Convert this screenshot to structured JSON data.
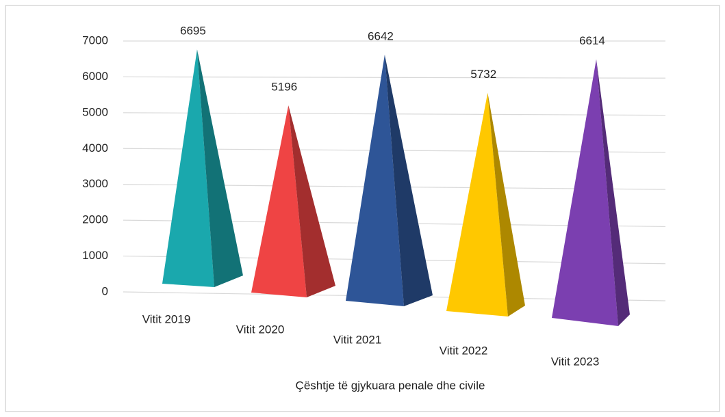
{
  "chart_data": {
    "type": "pyramid",
    "x_label": "Çështje të gjykuara penale dhe civile",
    "categories": [
      "Vitit 2019",
      "Vitit 2020",
      "Vitit 2021",
      "Vitit 2022",
      "Vitit 2023"
    ],
    "values": [
      6695,
      5196,
      6642,
      5732,
      6614
    ],
    "colors": [
      "#1aa8ad",
      "#ef4444",
      "#2e5597",
      "#ffc800",
      "#7b3fb0"
    ],
    "ylim": [
      0,
      7000
    ],
    "yticks": [
      0,
      1000,
      2000,
      3000,
      4000,
      5000,
      6000,
      7000
    ],
    "grid": true
  }
}
